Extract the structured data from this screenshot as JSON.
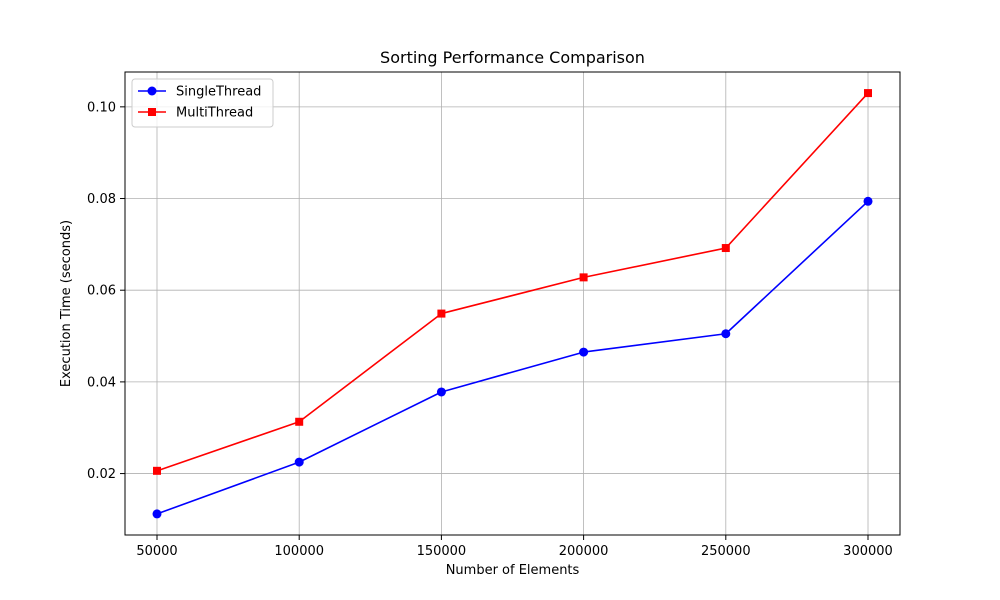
{
  "chart_data": {
    "type": "line",
    "title": "Sorting Performance Comparison",
    "xlabel": "Number of Elements",
    "ylabel": "Execution Time (seconds)",
    "x": [
      50000,
      100000,
      150000,
      200000,
      250000,
      300000
    ],
    "x_ticks": [
      50000,
      100000,
      150000,
      200000,
      250000,
      300000
    ],
    "y_ticks": [
      0.02,
      0.04,
      0.06,
      0.08,
      0.1
    ],
    "y_tick_labels": [
      "0.02",
      "0.04",
      "0.06",
      "0.08",
      "0.10"
    ],
    "xlim": [
      38750,
      311250
    ],
    "ylim": [
      0.0066,
      0.1076
    ],
    "grid": true,
    "legend_position": "upper-left",
    "series": [
      {
        "name": "SingleThread",
        "values": [
          0.0112,
          0.0225,
          0.0378,
          0.0465,
          0.0505,
          0.0794
        ],
        "color": "#0000ff",
        "marker": "circle"
      },
      {
        "name": "MultiThread",
        "values": [
          0.0206,
          0.0313,
          0.0549,
          0.0628,
          0.0692,
          0.103
        ],
        "color": "#ff0000",
        "marker": "square"
      }
    ]
  }
}
